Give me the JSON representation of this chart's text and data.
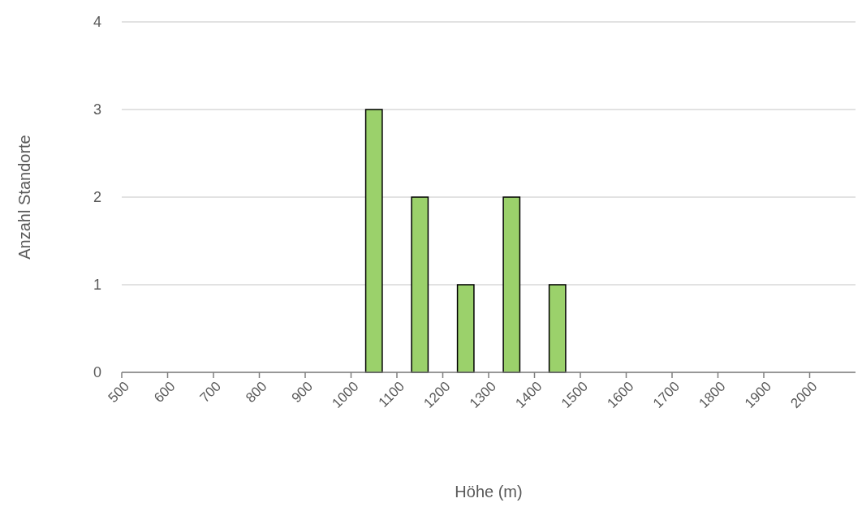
{
  "chart_data": {
    "type": "histogram",
    "xlabel": "Höhe (m)",
    "ylabel": "Anzahl Standorte",
    "bins": [
      500,
      600,
      700,
      800,
      900,
      1000,
      1100,
      1200,
      1300,
      1400,
      1500,
      1600,
      1700,
      1800,
      1900,
      2000,
      2100
    ],
    "values": [
      0,
      0,
      0,
      0,
      0,
      3,
      2,
      1,
      2,
      1,
      0,
      0,
      0,
      0,
      0,
      0
    ],
    "color": "#9bd16b",
    "xlim": [
      500,
      2100
    ],
    "xticks": [
      500,
      600,
      700,
      800,
      900,
      1000,
      1100,
      1200,
      1300,
      1400,
      1500,
      1600,
      1700,
      1800,
      1900,
      2000
    ],
    "ylim": [
      0,
      4
    ],
    "yticks": [
      0,
      1,
      2,
      3,
      4
    ],
    "grid": "y"
  }
}
